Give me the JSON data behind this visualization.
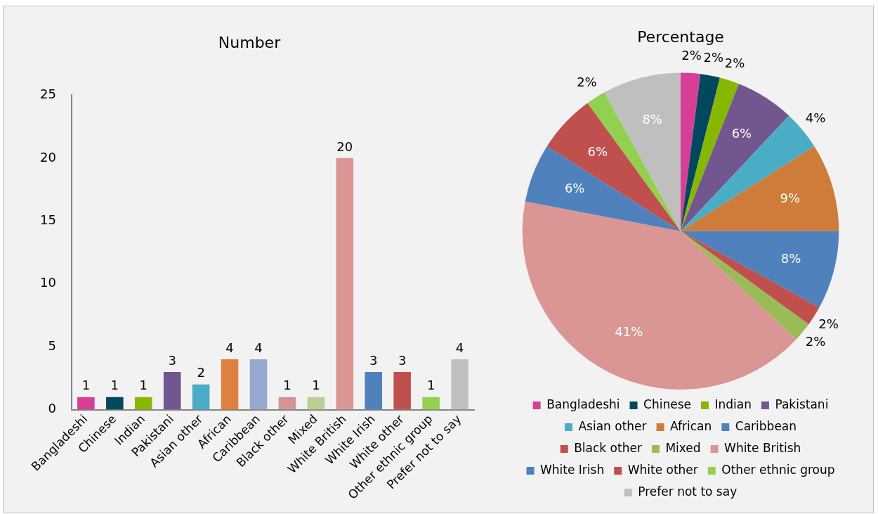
{
  "chart_data": [
    {
      "type": "bar",
      "title": "Number",
      "categories": [
        "Bangladeshi",
        "Chinese",
        "Indian",
        "Pakistani",
        "Asian other",
        "African",
        "Caribbean",
        "Black other",
        "Mixed",
        "White British",
        "White Irish",
        "White other",
        "Other ethnic group",
        "Prefer not to say"
      ],
      "values": [
        1,
        1,
        1,
        3,
        2,
        4,
        4,
        1,
        1,
        20,
        3,
        3,
        1,
        4
      ],
      "colors": [
        "#d63f96",
        "#01475e",
        "#87b800",
        "#725690",
        "#4bacc6",
        "#dd8040",
        "#95a9d1",
        "#d49494",
        "#b8cf95",
        "#d99694",
        "#4f81bd",
        "#c0504d",
        "#92d050",
        "#bfbfbf"
      ],
      "ylim": [
        0,
        25
      ],
      "yticks": [
        0,
        5,
        10,
        15,
        20,
        25
      ],
      "grid": false,
      "legend": false,
      "data_labels": true
    },
    {
      "type": "pie",
      "title": "Percentage",
      "categories": [
        "Bangladeshi",
        "Chinese",
        "Indian",
        "Pakistani",
        "Asian other",
        "African",
        "Caribbean",
        "Black other",
        "Mixed",
        "White British",
        "White Irish",
        "White other",
        "Other ethnic group",
        "Prefer not to say"
      ],
      "values": [
        2,
        2,
        2,
        6,
        4,
        9,
        8,
        2,
        2,
        41,
        6,
        6,
        2,
        8
      ],
      "value_labels": [
        "2%",
        "2%",
        "2%",
        "6%",
        "4%",
        "9%",
        "8%",
        "2%",
        "2%",
        "41%",
        "6%",
        "6%",
        "2%",
        "8%"
      ],
      "colors": [
        "#d63f96",
        "#01475e",
        "#87b800",
        "#725690",
        "#4bacc6",
        "#cd7c3a",
        "#4f81bd",
        "#c0504d",
        "#9bbb59",
        "#d99694",
        "#4f81bd",
        "#c0504d",
        "#92d050",
        "#bfbfbf"
      ],
      "legend": "bottom"
    }
  ]
}
